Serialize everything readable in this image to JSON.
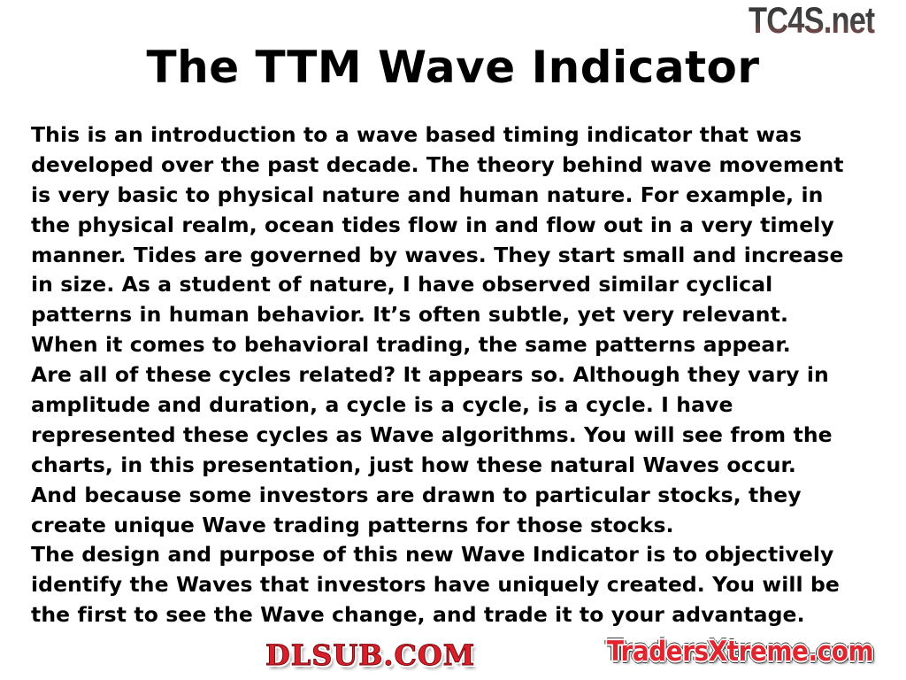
{
  "slide": {
    "title": "The TTM Wave Indicator",
    "lines": [
      "This is an introduction to a wave based timing indicator that was",
      "developed over the past decade. The theory behind wave movement",
      "is very basic to physical nature and human nature. For example, in",
      "the physical realm, ocean tides flow in and flow out in a very timely",
      "manner. Tides are governed by waves. They start small and increase",
      "in size. As a student of nature, I have observed similar cyclical",
      "patterns in human behavior. It’s often subtle, yet very relevant.",
      "When it comes to behavioral trading, the same patterns appear.",
      "Are all of these cycles related? It appears so. Although they vary in",
      "amplitude and duration, a cycle is a cycle, is a cycle. I have",
      "represented these cycles as Wave algorithms. You will see from the",
      "charts, in this presentation, just how these natural Waves occur.",
      "And because some investors are drawn to particular stocks, they",
      "create unique Wave trading patterns for those stocks.",
      "The design and purpose of this new Wave Indicator is to objectively",
      "identify the Waves that investors have uniquely created. You will be",
      "the first to see the Wave change, and trade it to your advantage."
    ]
  },
  "watermarks": {
    "top_right": "TC4S.net",
    "center": "DLSUB.COM",
    "bottom_right": "TradersXtreme.com"
  },
  "colors": {
    "text": "#000000",
    "watermark_red": "#d8202a"
  }
}
